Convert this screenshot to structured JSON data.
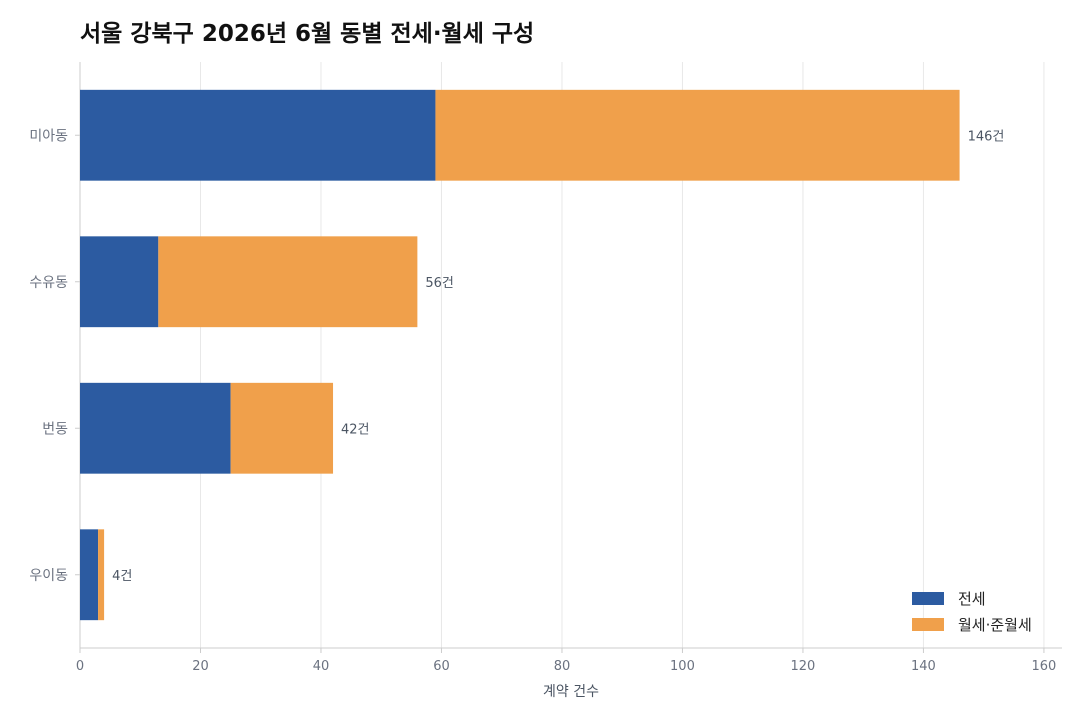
{
  "chart_data": {
    "type": "bar",
    "orientation": "horizontal",
    "stacked": true,
    "title": "서울 강북구 2026년 6월 동별 전세·월세 구성",
    "xlabel": "계약 건수",
    "ylabel": "",
    "xlim": [
      0,
      163
    ],
    "xticks": [
      0,
      20,
      40,
      60,
      80,
      100,
      120,
      140,
      160
    ],
    "grid": true,
    "legend_position": "bottom-right",
    "categories": [
      "미아동",
      "수유동",
      "번동",
      "우이동"
    ],
    "series": [
      {
        "name": "전세",
        "color": "#2c5ba1",
        "values": [
          59,
          13,
          25,
          3
        ]
      },
      {
        "name": "월세·준월세",
        "color": "#f0a04b",
        "values": [
          87,
          43,
          17,
          1
        ]
      }
    ],
    "total_labels": [
      "146건",
      "56건",
      "42건",
      "4건"
    ]
  }
}
